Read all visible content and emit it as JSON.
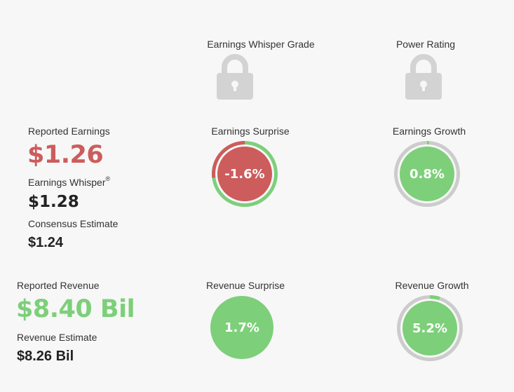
{
  "header": {
    "whisper_grade_label": "Earnings Whisper Grade",
    "power_rating_label": "Power Rating"
  },
  "earnings": {
    "reported_label": "Reported Earnings",
    "reported_value": "$1.26",
    "whisper_label": "Earnings Whisper",
    "whisper_mark": "®",
    "whisper_value": "$1.28",
    "consensus_label": "Consensus Estimate",
    "consensus_value": "$1.24"
  },
  "revenue": {
    "reported_label": "Reported Revenue",
    "reported_value": "$8.40 Bil",
    "estimate_label": "Revenue Estimate",
    "estimate_value": "$8.26 Bil"
  },
  "gauges": {
    "earnings_surprise": {
      "label": "Earnings Surprise",
      "value_text": "-1.6%",
      "value": -1.6,
      "ring_fraction": 0.27,
      "fill_color": "#cd5c5c",
      "ring_color": "#7dcf7a",
      "arc_color": "#cd5c5c"
    },
    "earnings_growth": {
      "label": "Earnings Growth",
      "value_text": "0.8%",
      "value": 0.8,
      "ring_fraction": 0.01,
      "fill_color": "#7dcf7a",
      "ring_color": "#cccccc",
      "arc_color": "#7dcf7a"
    },
    "revenue_surprise": {
      "label": "Revenue Surprise",
      "value_text": "1.7%",
      "value": 1.7,
      "ring_fraction": 0,
      "fill_color": "#7dcf7a",
      "ring_color": "#7dcf7a",
      "arc_color": "#7dcf7a"
    },
    "revenue_growth": {
      "label": "Revenue Growth",
      "value_text": "5.2%",
      "value": 5.2,
      "ring_fraction": 0.05,
      "fill_color": "#7dcf7a",
      "ring_color": "#cccccc",
      "arc_color": "#7dcf7a"
    }
  },
  "colors": {
    "red": "#cd5c5c",
    "green": "#7dcf7a",
    "gray": "#cccccc",
    "lock": "#d3d3d3"
  },
  "icons": {
    "whisper_grade": "lock-icon",
    "power_rating": "lock-icon"
  }
}
